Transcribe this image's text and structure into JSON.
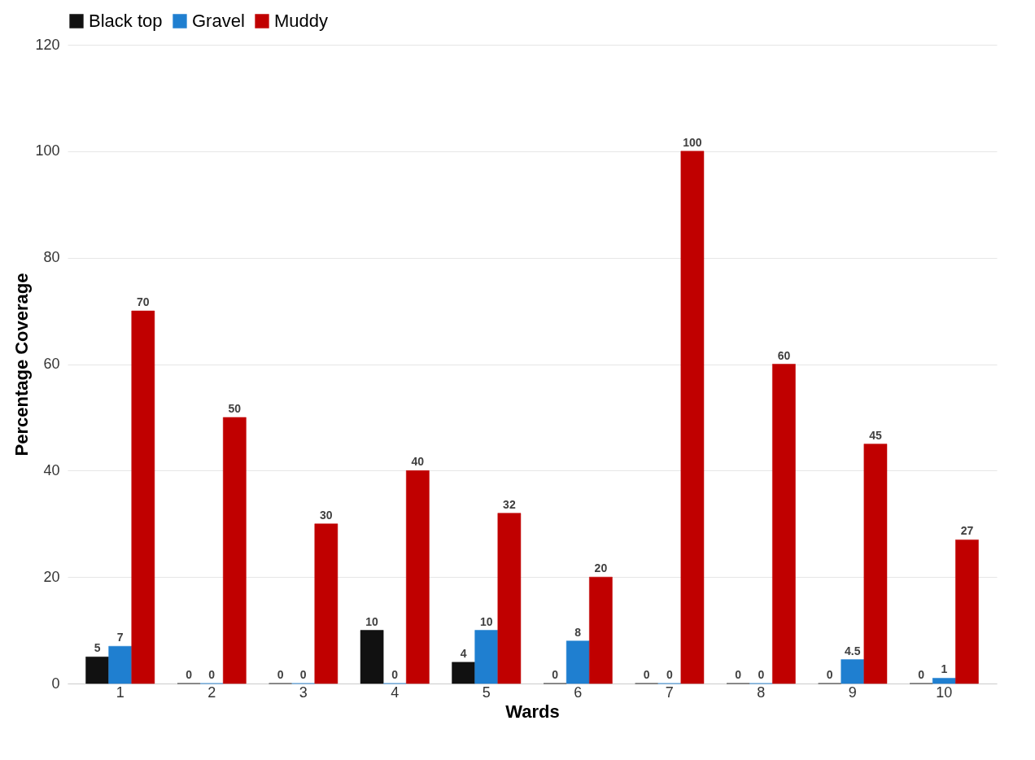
{
  "chart_data": {
    "type": "bar",
    "xlabel": "Wards",
    "ylabel": "Percentage Coverage",
    "categories": [
      "1",
      "2",
      "3",
      "4",
      "5",
      "6",
      "7",
      "8",
      "9",
      "10"
    ],
    "series": [
      {
        "name": "Black top",
        "color": "#111111",
        "values": [
          5,
          0,
          0,
          10,
          4,
          0,
          0,
          0,
          0,
          0
        ]
      },
      {
        "name": "Gravel",
        "color": "#1f7fd0",
        "values": [
          7,
          0,
          0,
          0,
          10,
          8,
          0,
          0,
          4.5,
          1
        ]
      },
      {
        "name": "Muddy",
        "color": "#c00000",
        "values": [
          70,
          50,
          30,
          40,
          32,
          20,
          100,
          60,
          45,
          27
        ]
      }
    ],
    "ylim": [
      0,
      120
    ],
    "yticks": [
      0,
      20,
      40,
      60,
      80,
      100,
      120
    ],
    "grid": "y",
    "legend": "top",
    "data_labels": true
  }
}
